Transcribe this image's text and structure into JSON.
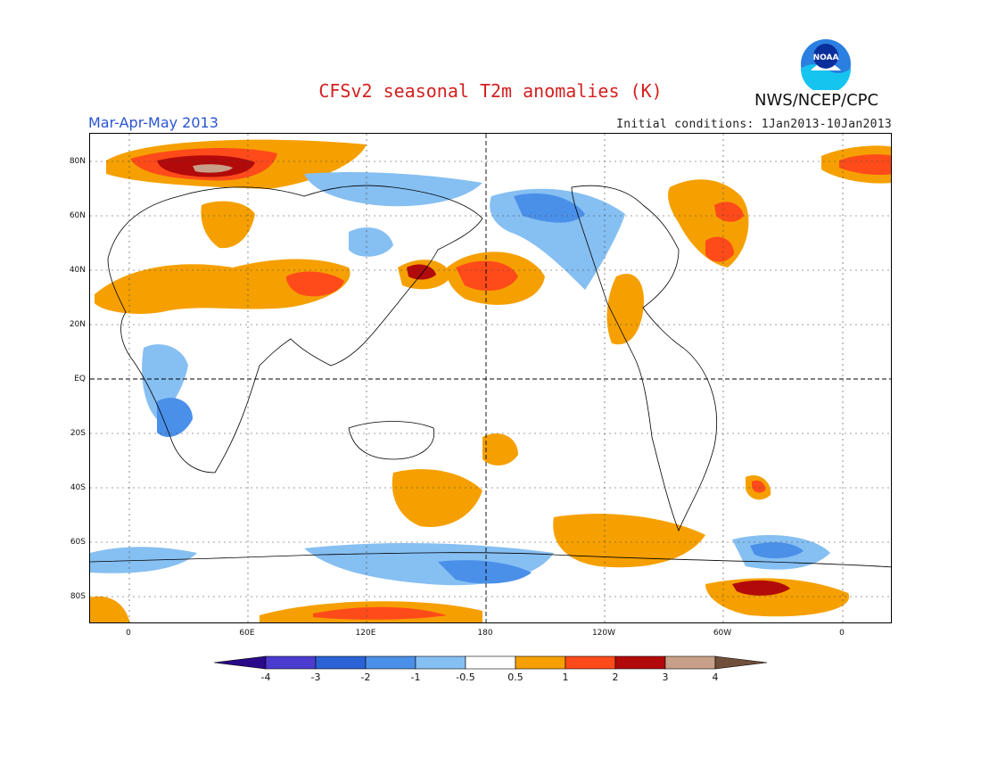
{
  "title": "CFSv2 seasonal T2m anomalies (K)",
  "season": "Mar-Apr-May 2013",
  "initial_conditions": "Initial conditions: 1Jan2013-10Jan2013",
  "organization": "NWS/NCEP/CPC",
  "logo_text": "NOAA",
  "colors": {
    "title": "#d42020",
    "season": "#2a55d0",
    "map_bg": "#ffffff"
  },
  "lat_labels": [
    "80N",
    "60N",
    "40N",
    "20N",
    "EQ",
    "20S",
    "40S",
    "60S",
    "80S"
  ],
  "lon_labels": [
    "0",
    "60E",
    "120E",
    "180",
    "120W",
    "60W",
    "0"
  ],
  "colorbar": {
    "labels": [
      "-4",
      "-3",
      "-2",
      "-1",
      "-0.5",
      "0.5",
      "1",
      "2",
      "3",
      "4"
    ],
    "colors": [
      "#2a0a8a",
      "#4a3ccf",
      "#2b63d6",
      "#4a90e8",
      "#86bff2",
      "#ffffff",
      "#f5a000",
      "#ff4a1a",
      "#b20a0a",
      "#c8a089",
      "#70503a"
    ]
  }
}
